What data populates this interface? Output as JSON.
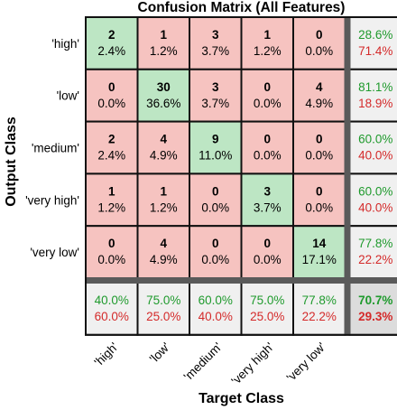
{
  "chart_data": {
    "type": "heatmap",
    "title": "Confusion Matrix (All Features)",
    "xlabel": "Target Class",
    "ylabel": "Output Class",
    "classes": [
      "'high'",
      "'low'",
      "'medium'",
      "'very high'",
      "'very low'"
    ],
    "counts": [
      [
        2,
        1,
        3,
        1,
        0
      ],
      [
        0,
        30,
        3,
        0,
        4
      ],
      [
        2,
        4,
        9,
        0,
        0
      ],
      [
        1,
        1,
        0,
        3,
        0
      ],
      [
        0,
        4,
        0,
        0,
        14
      ]
    ],
    "cell_percents": [
      [
        "2.4%",
        "1.2%",
        "3.7%",
        "1.2%",
        "0.0%"
      ],
      [
        "0.0%",
        "36.6%",
        "3.7%",
        "0.0%",
        "4.9%"
      ],
      [
        "2.4%",
        "4.9%",
        "11.0%",
        "0.0%",
        "0.0%"
      ],
      [
        "1.2%",
        "1.2%",
        "0.0%",
        "3.7%",
        "0.0%"
      ],
      [
        "0.0%",
        "4.9%",
        "0.0%",
        "0.0%",
        "17.1%"
      ]
    ],
    "row_summary": [
      {
        "correct": "28.6%",
        "wrong": "71.4%"
      },
      {
        "correct": "81.1%",
        "wrong": "18.9%"
      },
      {
        "correct": "60.0%",
        "wrong": "40.0%"
      },
      {
        "correct": "60.0%",
        "wrong": "40.0%"
      },
      {
        "correct": "77.8%",
        "wrong": "22.2%"
      }
    ],
    "col_summary": [
      {
        "correct": "40.0%",
        "wrong": "60.0%"
      },
      {
        "correct": "75.0%",
        "wrong": "25.0%"
      },
      {
        "correct": "60.0%",
        "wrong": "40.0%"
      },
      {
        "correct": "75.0%",
        "wrong": "25.0%"
      },
      {
        "correct": "77.8%",
        "wrong": "22.2%"
      }
    ],
    "overall": {
      "correct": "70.7%",
      "wrong": "29.3%"
    },
    "colors": {
      "diagonal": "#bde6c4",
      "offdiagonal": "#f6c3c0",
      "summary": "#f0f0f0",
      "correct_text": "#1f9a2d",
      "wrong_text": "#d42a2a"
    }
  }
}
